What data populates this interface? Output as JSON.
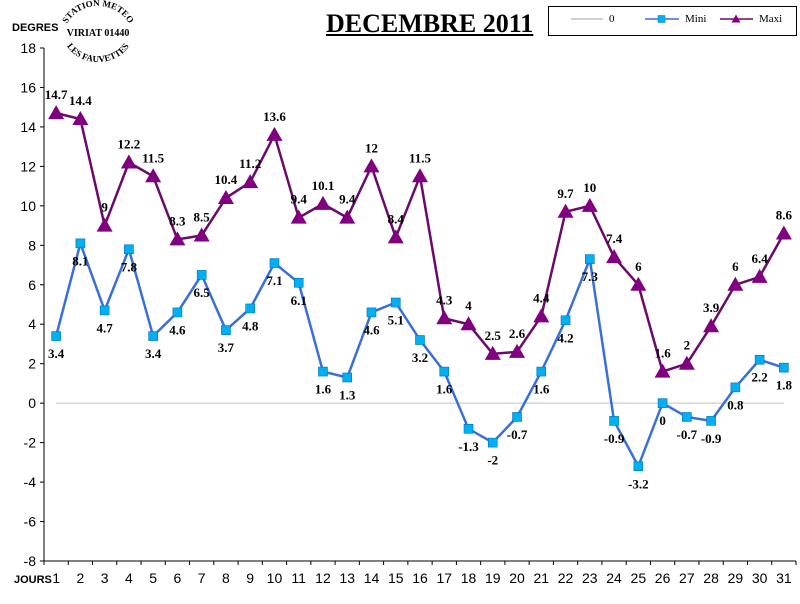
{
  "chart_data": {
    "type": "line",
    "title": "DECEMBRE 2011",
    "ylabel": "DEGRES",
    "xlabel": "JOURS",
    "ylim": [
      -8,
      18
    ],
    "yticks": [
      -8,
      -6,
      -4,
      -2,
      0,
      2,
      4,
      6,
      8,
      10,
      12,
      14,
      16,
      18
    ],
    "categories": [
      "1",
      "2",
      "3",
      "4",
      "5",
      "6",
      "7",
      "8",
      "9",
      "10",
      "11",
      "12",
      "13",
      "14",
      "15",
      "16",
      "17",
      "18",
      "19",
      "20",
      "21",
      "22",
      "23",
      "24",
      "25",
      "26",
      "27",
      "28",
      "29",
      "30",
      "31"
    ],
    "series": [
      {
        "name": "0",
        "color": "#c0c0c0",
        "values": [
          0,
          0,
          0,
          0,
          0,
          0,
          0,
          0,
          0,
          0,
          0,
          0,
          0,
          0,
          0,
          0,
          0,
          0,
          0,
          0,
          0,
          0,
          0,
          0,
          0,
          0,
          0,
          0,
          0,
          0,
          0
        ]
      },
      {
        "name": "Mini",
        "color": "#3a6fd8",
        "marker": "#00b0f0",
        "values": [
          3.4,
          8.1,
          4.7,
          7.8,
          3.4,
          4.6,
          6.5,
          3.7,
          4.8,
          7.1,
          6.1,
          1.6,
          1.3,
          4.6,
          5.1,
          3.2,
          1.6,
          -1.3,
          -2,
          -0.7,
          1.6,
          4.2,
          7.3,
          -0.9,
          -3.2,
          0,
          -0.7,
          -0.9,
          0.8,
          2.2,
          1.8
        ]
      },
      {
        "name": "Maxi",
        "color": "#6a0a6a",
        "marker": "#800080",
        "values": [
          14.7,
          14.4,
          9,
          12.2,
          11.5,
          8.3,
          8.5,
          10.4,
          11.2,
          13.6,
          9.4,
          10.1,
          9.4,
          12,
          8.4,
          11.5,
          4.3,
          4,
          2.5,
          2.6,
          4.4,
          9.7,
          10,
          7.4,
          6,
          1.6,
          2,
          3.9,
          6,
          6.4,
          8.6
        ]
      }
    ],
    "grid": false,
    "legend": "top-right"
  },
  "logo": {
    "top_text": "STATION METEO",
    "middle_text": "VIRIAT 01440",
    "bottom_text": "LES FAUVETTES"
  }
}
